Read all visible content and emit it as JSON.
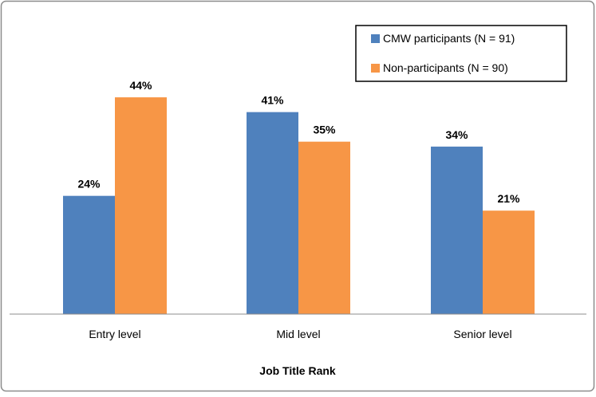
{
  "chart_data": {
    "type": "bar",
    "categories": [
      "Entry level",
      "Mid level",
      "Senior level"
    ],
    "series": [
      {
        "name": "CMW participants (N = 91)",
        "values": [
          24,
          41,
          34
        ],
        "color": "#4F81BD"
      },
      {
        "name": "Non-participants (N = 90)",
        "values": [
          44,
          35,
          21
        ],
        "color": "#F79646"
      }
    ],
    "data_labels": [
      [
        "24%",
        "41%",
        "34%"
      ],
      [
        "44%",
        "35%",
        "21%"
      ]
    ],
    "xlabel": "Job Title Rank",
    "ylabel": "",
    "ylim": [
      0,
      50
    ],
    "grid": false,
    "legend": "top-right"
  }
}
